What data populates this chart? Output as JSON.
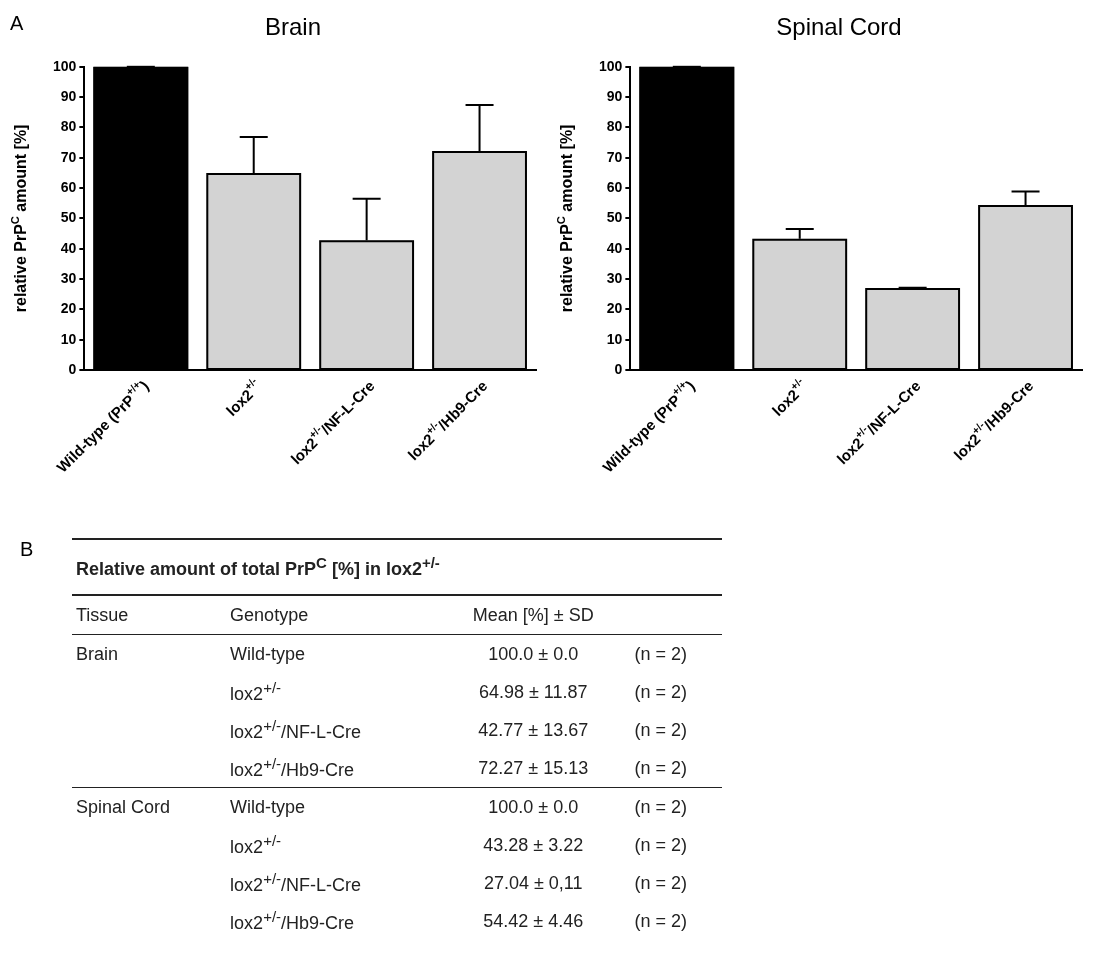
{
  "chart_data": [
    {
      "type": "bar",
      "title": "Brain",
      "ylabel": "relative PrP$^{C}$ amount [%]",
      "annotations": [
        "A"
      ],
      "categories": [
        "Wild-type (PrP$^{+/+}$)",
        "lox2$^{+/-}$",
        "lox2$^{+/-}$/NF-L-Cre",
        "lox2$^{+/-}$/Hb9-Cre"
      ],
      "values": [
        100,
        64.98,
        42.77,
        72.27
      ],
      "errors": [
        0,
        11.87,
        13.67,
        15.13
      ],
      "colors": [
        "#000000",
        "#d3d3d3",
        "#d3d3d3",
        "#d3d3d3"
      ],
      "ylim": [
        0,
        100
      ],
      "yticks": [
        0,
        10,
        20,
        30,
        40,
        50,
        60,
        70,
        80,
        90,
        100
      ],
      "grid": false,
      "legend": false
    },
    {
      "type": "bar",
      "title": "Spinal Cord",
      "ylabel": "relative PrP$^{C}$ amount [%]",
      "categories": [
        "Wild-type (PrP$^{+/+}$)",
        "lox2$^{+/-}$",
        "lox2$^{+/-}$/NF-L-Cre",
        "lox2$^{+/-}$/Hb9-Cre"
      ],
      "values": [
        100,
        43.28,
        27.04,
        54.42
      ],
      "errors": [
        0,
        3.22,
        0.11,
        4.46
      ],
      "colors": [
        "#000000",
        "#d3d3d3",
        "#d3d3d3",
        "#d3d3d3"
      ],
      "ylim": [
        0,
        100
      ],
      "yticks": [
        0,
        10,
        20,
        30,
        40,
        50,
        60,
        70,
        80,
        90,
        100
      ],
      "grid": false,
      "legend": false
    },
    {
      "type": "other",
      "title": "Relative amount of total PrP$^{C}$ [%] in lox2$^{+/-}$",
      "annotations": [
        "B",
        "Tissue",
        "Genotype",
        "Mean [%] ± SD",
        "Brain",
        "Wild-type",
        "100.0 ± 0.0",
        "(n = 2)",
        "lox2$^{+/-}$",
        "64.98 ± 11.87",
        "(n = 2)",
        "lox2$^{+/-}$/NF-L-Cre",
        "42.77 ± 13.67",
        "(n = 2)",
        "lox2$^{+/-}$/Hb9-Cre",
        "72.27 ± 15.13",
        "(n = 2)",
        "Spinal Cord",
        "Wild-type",
        "100.0 ± 0.0",
        "(n = 2)",
        "lox2$^{+/-}$",
        "43.28 ± 3.22",
        "(n = 2)",
        "lox2$^{+/-}$/NF-L-Cre",
        "27.04 ± 0,11",
        "(n = 2)",
        "lox2$^{+/-}$/Hb9-Cre",
        "54.42 ± 4.46",
        "(n = 2)"
      ]
    }
  ]
}
